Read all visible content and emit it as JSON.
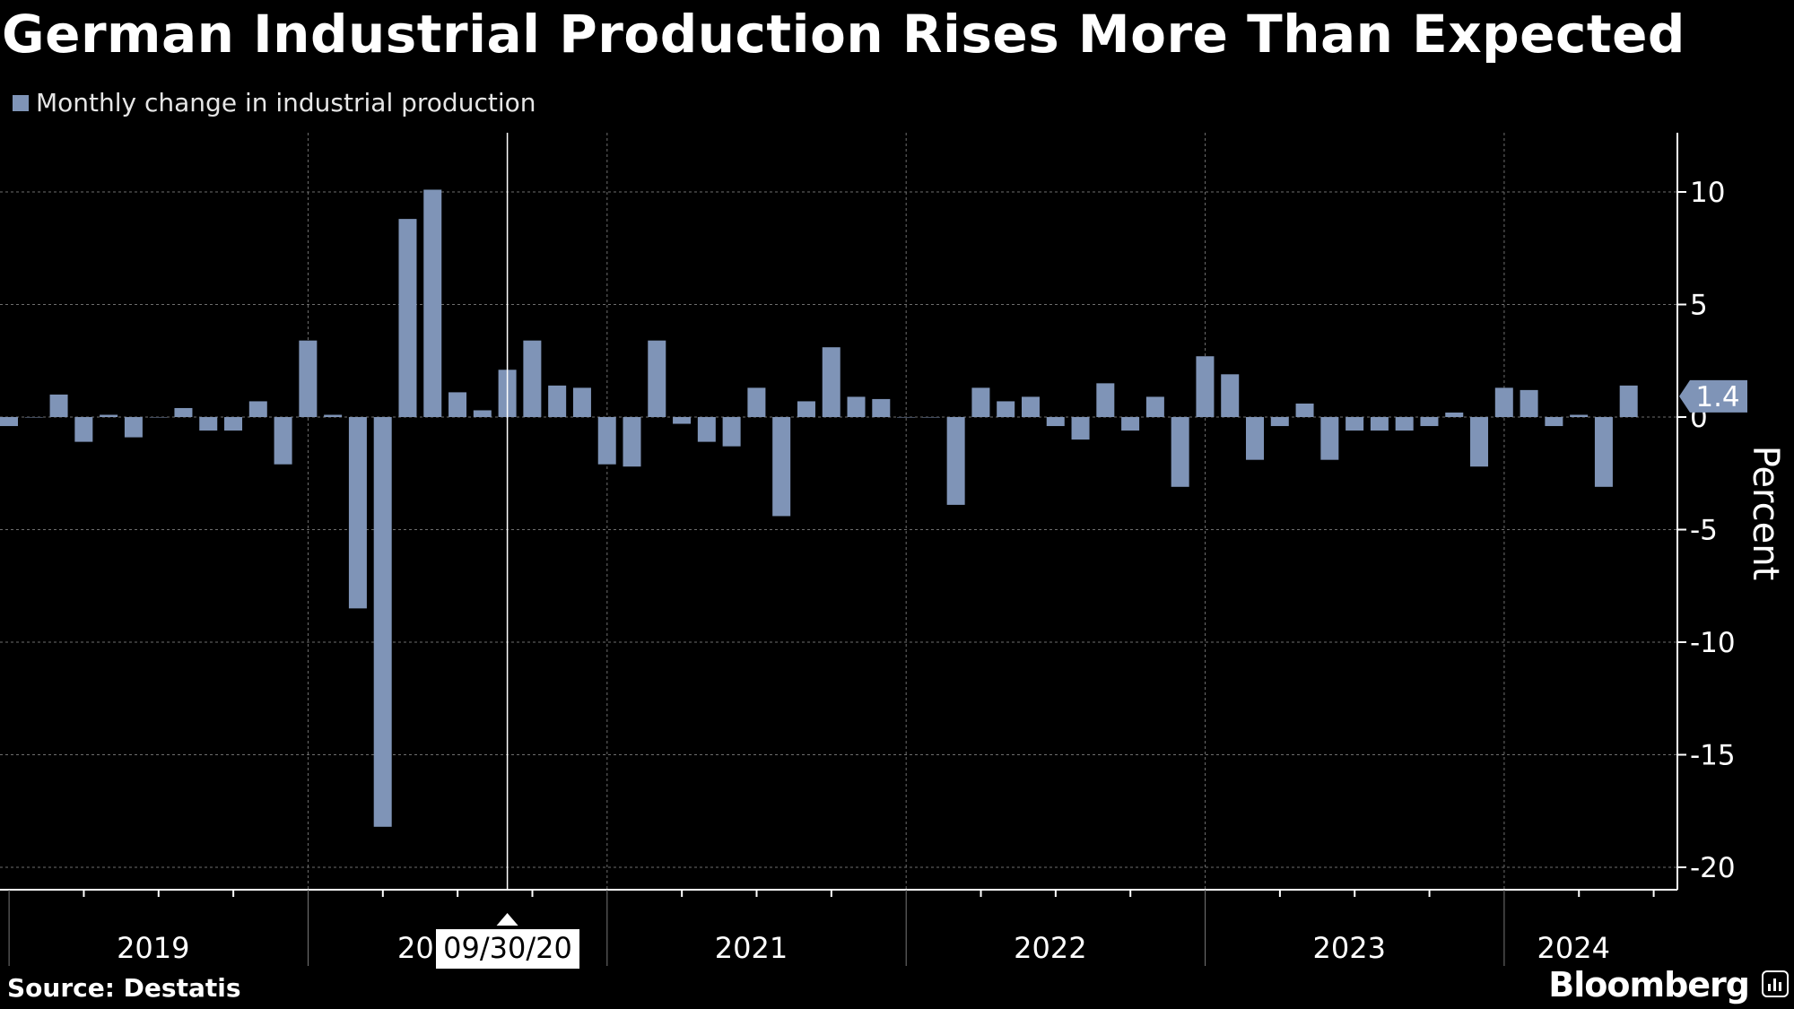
{
  "title": "German Industrial Production Rises More Than Expected",
  "legend_label": "Monthly change in industrial production",
  "source": "Source: Destatis",
  "brand": "Bloomberg",
  "colors": {
    "bar": "#7f94b7",
    "background": "#000000",
    "grid": "#6e6e6e",
    "text": "#ffffff"
  },
  "tooltip": {
    "date": "09/30/20",
    "year_prefix": "20"
  },
  "last_value_label": "1.4",
  "chart_data": {
    "type": "bar",
    "ylabel": "Percent",
    "xlabel": "",
    "ylim": [
      -21,
      12.5
    ],
    "yticks": [
      10,
      5,
      0,
      -5,
      -10,
      -15,
      -20
    ],
    "ytick_labels": [
      "10",
      "5",
      "0",
      "-5",
      "-10",
      "-15",
      "-20"
    ],
    "year_labels": [
      "2019",
      "2020",
      "2021",
      "2022",
      "2023",
      "2024"
    ],
    "grid": true,
    "legend_position": "top-left",
    "categories": [
      "2019-01",
      "2019-02",
      "2019-03",
      "2019-04",
      "2019-05",
      "2019-06",
      "2019-07",
      "2019-08",
      "2019-09",
      "2019-10",
      "2019-11",
      "2019-12",
      "2020-01",
      "2020-02",
      "2020-03",
      "2020-04",
      "2020-05",
      "2020-06",
      "2020-07",
      "2020-08",
      "2020-09",
      "2020-10",
      "2020-11",
      "2020-12",
      "2021-01",
      "2021-02",
      "2021-03",
      "2021-04",
      "2021-05",
      "2021-06",
      "2021-07",
      "2021-08",
      "2021-09",
      "2021-10",
      "2021-11",
      "2021-12",
      "2022-01",
      "2022-02",
      "2022-03",
      "2022-04",
      "2022-05",
      "2022-06",
      "2022-07",
      "2022-08",
      "2022-09",
      "2022-10",
      "2022-11",
      "2022-12",
      "2023-01",
      "2023-02",
      "2023-03",
      "2023-04",
      "2023-05",
      "2023-06",
      "2023-07",
      "2023-08",
      "2023-09",
      "2023-10",
      "2023-11",
      "2023-12",
      "2024-01",
      "2024-02",
      "2024-03",
      "2024-04",
      "2024-05",
      "2024-06"
    ],
    "series": [
      {
        "name": "Monthly change in industrial production",
        "values": [
          -0.4,
          0.0,
          1.0,
          -1.1,
          0.1,
          -0.9,
          0.0,
          0.4,
          -0.6,
          -0.6,
          0.7,
          -2.1,
          3.4,
          0.1,
          -8.5,
          -18.2,
          8.8,
          10.1,
          1.1,
          0.3,
          2.1,
          3.4,
          1.4,
          1.3,
          -2.1,
          -2.2,
          3.4,
          -0.3,
          -1.1,
          -1.3,
          1.3,
          -4.4,
          0.7,
          3.1,
          0.9,
          0.8,
          0.0,
          0.0,
          -3.9,
          1.3,
          0.7,
          0.9,
          -0.4,
          -1.0,
          1.5,
          -0.6,
          0.9,
          -3.1,
          2.7,
          1.9,
          -1.9,
          -0.4,
          0.6,
          -1.9,
          -0.6,
          -0.6,
          -0.6,
          -0.4,
          0.2,
          -2.2,
          1.3,
          1.2,
          -0.4,
          0.1,
          -3.1,
          1.4
        ]
      }
    ]
  }
}
